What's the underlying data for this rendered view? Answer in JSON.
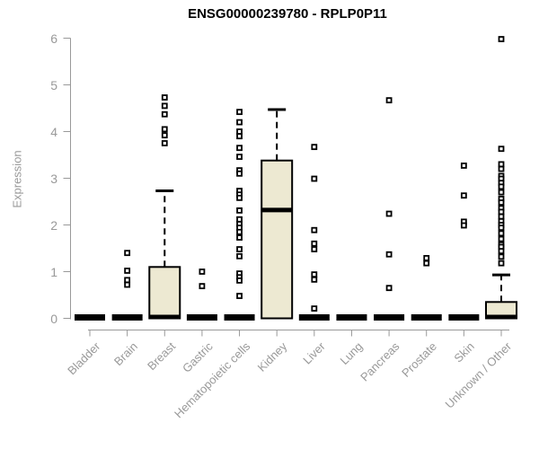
{
  "chart_data": {
    "type": "boxplot",
    "title": "ENSG00000239780 - RPLP0P11",
    "ylabel": "Expression",
    "ylim": [
      0,
      6
    ],
    "yticks": [
      0,
      1,
      2,
      3,
      4,
      5,
      6
    ],
    "grid": false,
    "legend": null,
    "categories": [
      "Bladder",
      "Brain",
      "Breast",
      "Gastric",
      "Hematopoietic cells",
      "Kidney",
      "Liver",
      "Lung",
      "Pancreas",
      "Prostate",
      "Skin",
      "Unknown / Other"
    ],
    "series": [
      {
        "category": "Bladder",
        "box": {
          "q1": 0,
          "median": 0.02,
          "q3": 0.04,
          "whisker_high": null,
          "collapsed": true
        },
        "outliers": []
      },
      {
        "category": "Brain",
        "box": {
          "q1": 0,
          "median": 0.02,
          "q3": 0.04,
          "whisker_high": null,
          "collapsed": true
        },
        "outliers": [
          1.4,
          1.02,
          0.82,
          0.72
        ]
      },
      {
        "category": "Breast",
        "box": {
          "q1": 0,
          "median": 0.03,
          "q3": 1.1,
          "whisker_high": 2.73,
          "collapsed": false
        },
        "outliers": [
          4.73,
          4.55,
          4.37,
          4.05,
          3.92,
          3.75
        ]
      },
      {
        "category": "Gastric",
        "box": {
          "q1": 0,
          "median": 0.02,
          "q3": 0.04,
          "whisker_high": null,
          "collapsed": true
        },
        "outliers": [
          1.0,
          0.69
        ]
      },
      {
        "category": "Hematopoietic cells",
        "box": {
          "q1": 0,
          "median": 0.02,
          "q3": 0.04,
          "whisker_high": null,
          "collapsed": true
        },
        "outliers": [
          4.42,
          4.2,
          4.0,
          3.9,
          3.65,
          3.46,
          3.17,
          3.1,
          2.73,
          2.65,
          2.58,
          2.31,
          2.12,
          2.02,
          1.94,
          1.85,
          1.73,
          1.48,
          1.33,
          0.96,
          0.88,
          0.81,
          0.48
        ]
      },
      {
        "category": "Kidney",
        "box": {
          "q1": 0,
          "median": 2.32,
          "q3": 3.38,
          "whisker_high": 4.47,
          "collapsed": false
        },
        "outliers": []
      },
      {
        "category": "Liver",
        "box": {
          "q1": 0,
          "median": 0.02,
          "q3": 0.04,
          "whisker_high": null,
          "collapsed": true
        },
        "outliers": [
          3.67,
          2.99,
          1.89,
          1.6,
          1.48,
          0.94,
          0.83,
          0.21
        ]
      },
      {
        "category": "Lung",
        "box": {
          "q1": 0,
          "median": 0.02,
          "q3": 0.04,
          "whisker_high": null,
          "collapsed": true
        },
        "outliers": []
      },
      {
        "category": "Pancreas",
        "box": {
          "q1": 0,
          "median": 0.02,
          "q3": 0.04,
          "whisker_high": null,
          "collapsed": true
        },
        "outliers": [
          4.67,
          2.24,
          1.37,
          0.65
        ]
      },
      {
        "category": "Prostate",
        "box": {
          "q1": 0,
          "median": 0.02,
          "q3": 0.04,
          "whisker_high": null,
          "collapsed": true
        },
        "outliers": [
          1.29,
          1.18
        ]
      },
      {
        "category": "Skin",
        "box": {
          "q1": 0,
          "median": 0.02,
          "q3": 0.04,
          "whisker_high": null,
          "collapsed": true
        },
        "outliers": [
          3.27,
          2.63,
          2.07,
          1.99
        ]
      },
      {
        "category": "Unknown / Other",
        "box": {
          "q1": 0,
          "median": 0.03,
          "q3": 0.35,
          "whisker_high": 0.93,
          "collapsed": false
        },
        "outliers": [
          5.98,
          3.63,
          3.3,
          3.2,
          3.05,
          2.99,
          2.9,
          2.82,
          2.7,
          2.56,
          2.48,
          2.36,
          2.28,
          2.18,
          2.08,
          2.0,
          1.94,
          1.82,
          1.7,
          1.58,
          1.53,
          1.44,
          1.32,
          1.18
        ]
      }
    ],
    "colors": {
      "box_fill": "#EDE9D2",
      "box_stroke": "#000000",
      "median": "#000000",
      "whisker": "#000000",
      "outlier_stroke": "#000000",
      "outlier_fill": "#FFFFFF",
      "axis": "#999999",
      "tick_text": "#999999",
      "title_text": "#000000"
    }
  }
}
